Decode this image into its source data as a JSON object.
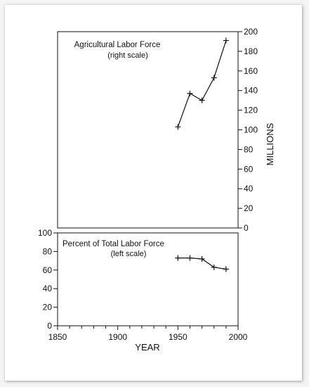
{
  "chart_data": [
    {
      "type": "line",
      "title": "Agricultural Labor Force",
      "subtitle": "(right scale)",
      "ylabel": "MILLIONS",
      "y_axis_side": "right",
      "ylim": [
        0,
        200
      ],
      "yticks": [
        "0",
        "20",
        "40",
        "60",
        "80",
        "100",
        "120",
        "140",
        "160",
        "180",
        "200"
      ],
      "xlim": [
        1850,
        2000
      ],
      "series": [
        {
          "x": [
            1950,
            1960,
            1970,
            1980,
            1990
          ],
          "values": [
            103,
            137,
            130,
            153,
            191
          ]
        }
      ]
    },
    {
      "type": "line",
      "title": "Percent of Total Labor Force",
      "subtitle": "(left scale)",
      "xlabel": "YEAR",
      "y_axis_side": "left",
      "ylim": [
        0,
        100
      ],
      "yticks": [
        "0",
        "20",
        "40",
        "60",
        "80",
        "100"
      ],
      "xlim": [
        1850,
        2000
      ],
      "xticks": [
        "1850",
        "1900",
        "1950",
        "2000"
      ],
      "series": [
        {
          "x": [
            1950,
            1960,
            1970,
            1980,
            1990
          ],
          "values": [
            73,
            73,
            72,
            63,
            61
          ]
        }
      ]
    }
  ]
}
